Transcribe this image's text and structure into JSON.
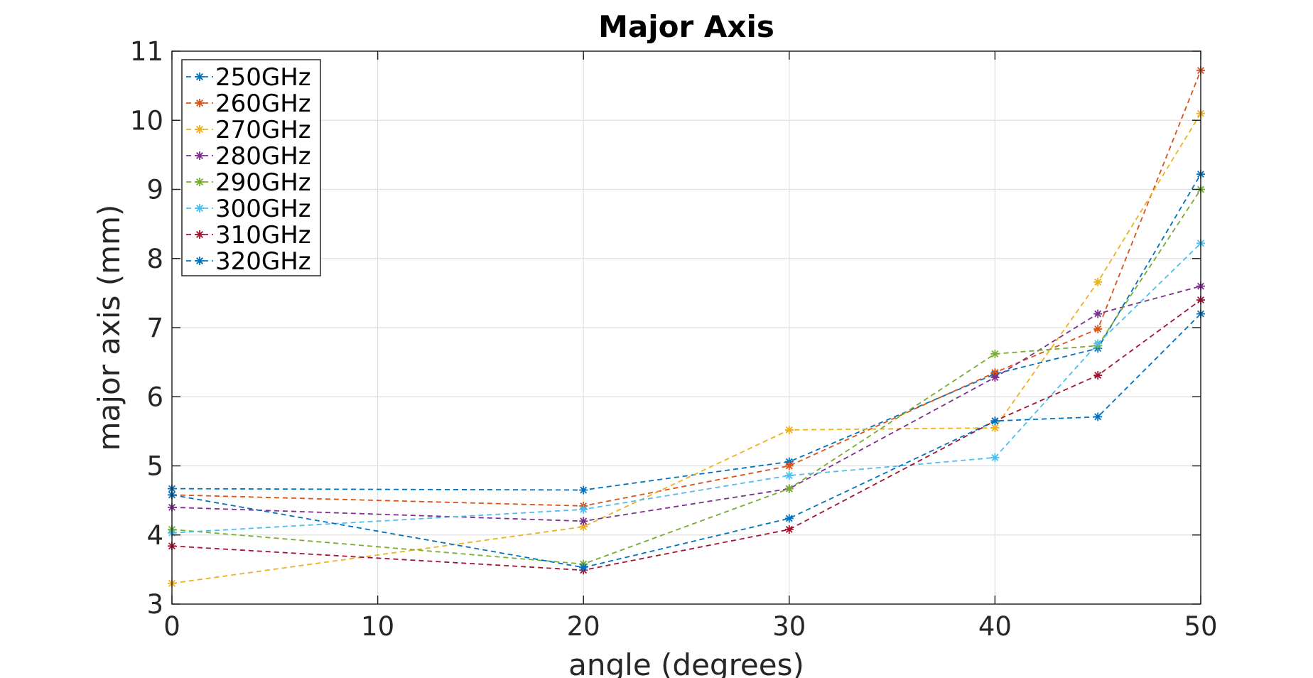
{
  "chart_data": {
    "type": "line",
    "title": "Major Axis",
    "xlabel": "angle (degrees)",
    "ylabel": "major axis (mm)",
    "xlim": [
      0,
      50
    ],
    "ylim": [
      3,
      11
    ],
    "xticks": [
      0,
      10,
      20,
      30,
      40,
      50
    ],
    "yticks": [
      3,
      4,
      5,
      6,
      7,
      8,
      9,
      10,
      11
    ],
    "grid": true,
    "legend_position": "top-left",
    "x": [
      0,
      20,
      30,
      40,
      45,
      50
    ],
    "series": [
      {
        "name": "250GHz",
        "color": "#0072BD",
        "values": [
          4.67,
          4.65,
          5.06,
          6.33,
          6.7,
          9.22
        ]
      },
      {
        "name": "260GHz",
        "color": "#D95319",
        "values": [
          4.58,
          4.42,
          5.0,
          6.35,
          6.98,
          10.72
        ]
      },
      {
        "name": "270GHz",
        "color": "#EDB120",
        "values": [
          3.3,
          4.12,
          5.52,
          5.55,
          7.66,
          10.1
        ]
      },
      {
        "name": "280GHz",
        "color": "#7E2F8E",
        "values": [
          4.4,
          4.2,
          4.67,
          6.28,
          7.2,
          7.6
        ]
      },
      {
        "name": "290GHz",
        "color": "#77AC30",
        "values": [
          4.08,
          3.58,
          4.67,
          6.62,
          6.74,
          9.0
        ]
      },
      {
        "name": "300GHz",
        "color": "#4DBEEE",
        "values": [
          4.03,
          4.37,
          4.86,
          5.12,
          6.77,
          8.22
        ]
      },
      {
        "name": "310GHz",
        "color": "#A2142F",
        "values": [
          3.84,
          3.49,
          4.08,
          5.65,
          6.31,
          7.4
        ]
      },
      {
        "name": "320GHz",
        "color": "#0072BD",
        "values": [
          4.58,
          3.53,
          4.24,
          5.65,
          5.71,
          7.2
        ]
      }
    ]
  }
}
